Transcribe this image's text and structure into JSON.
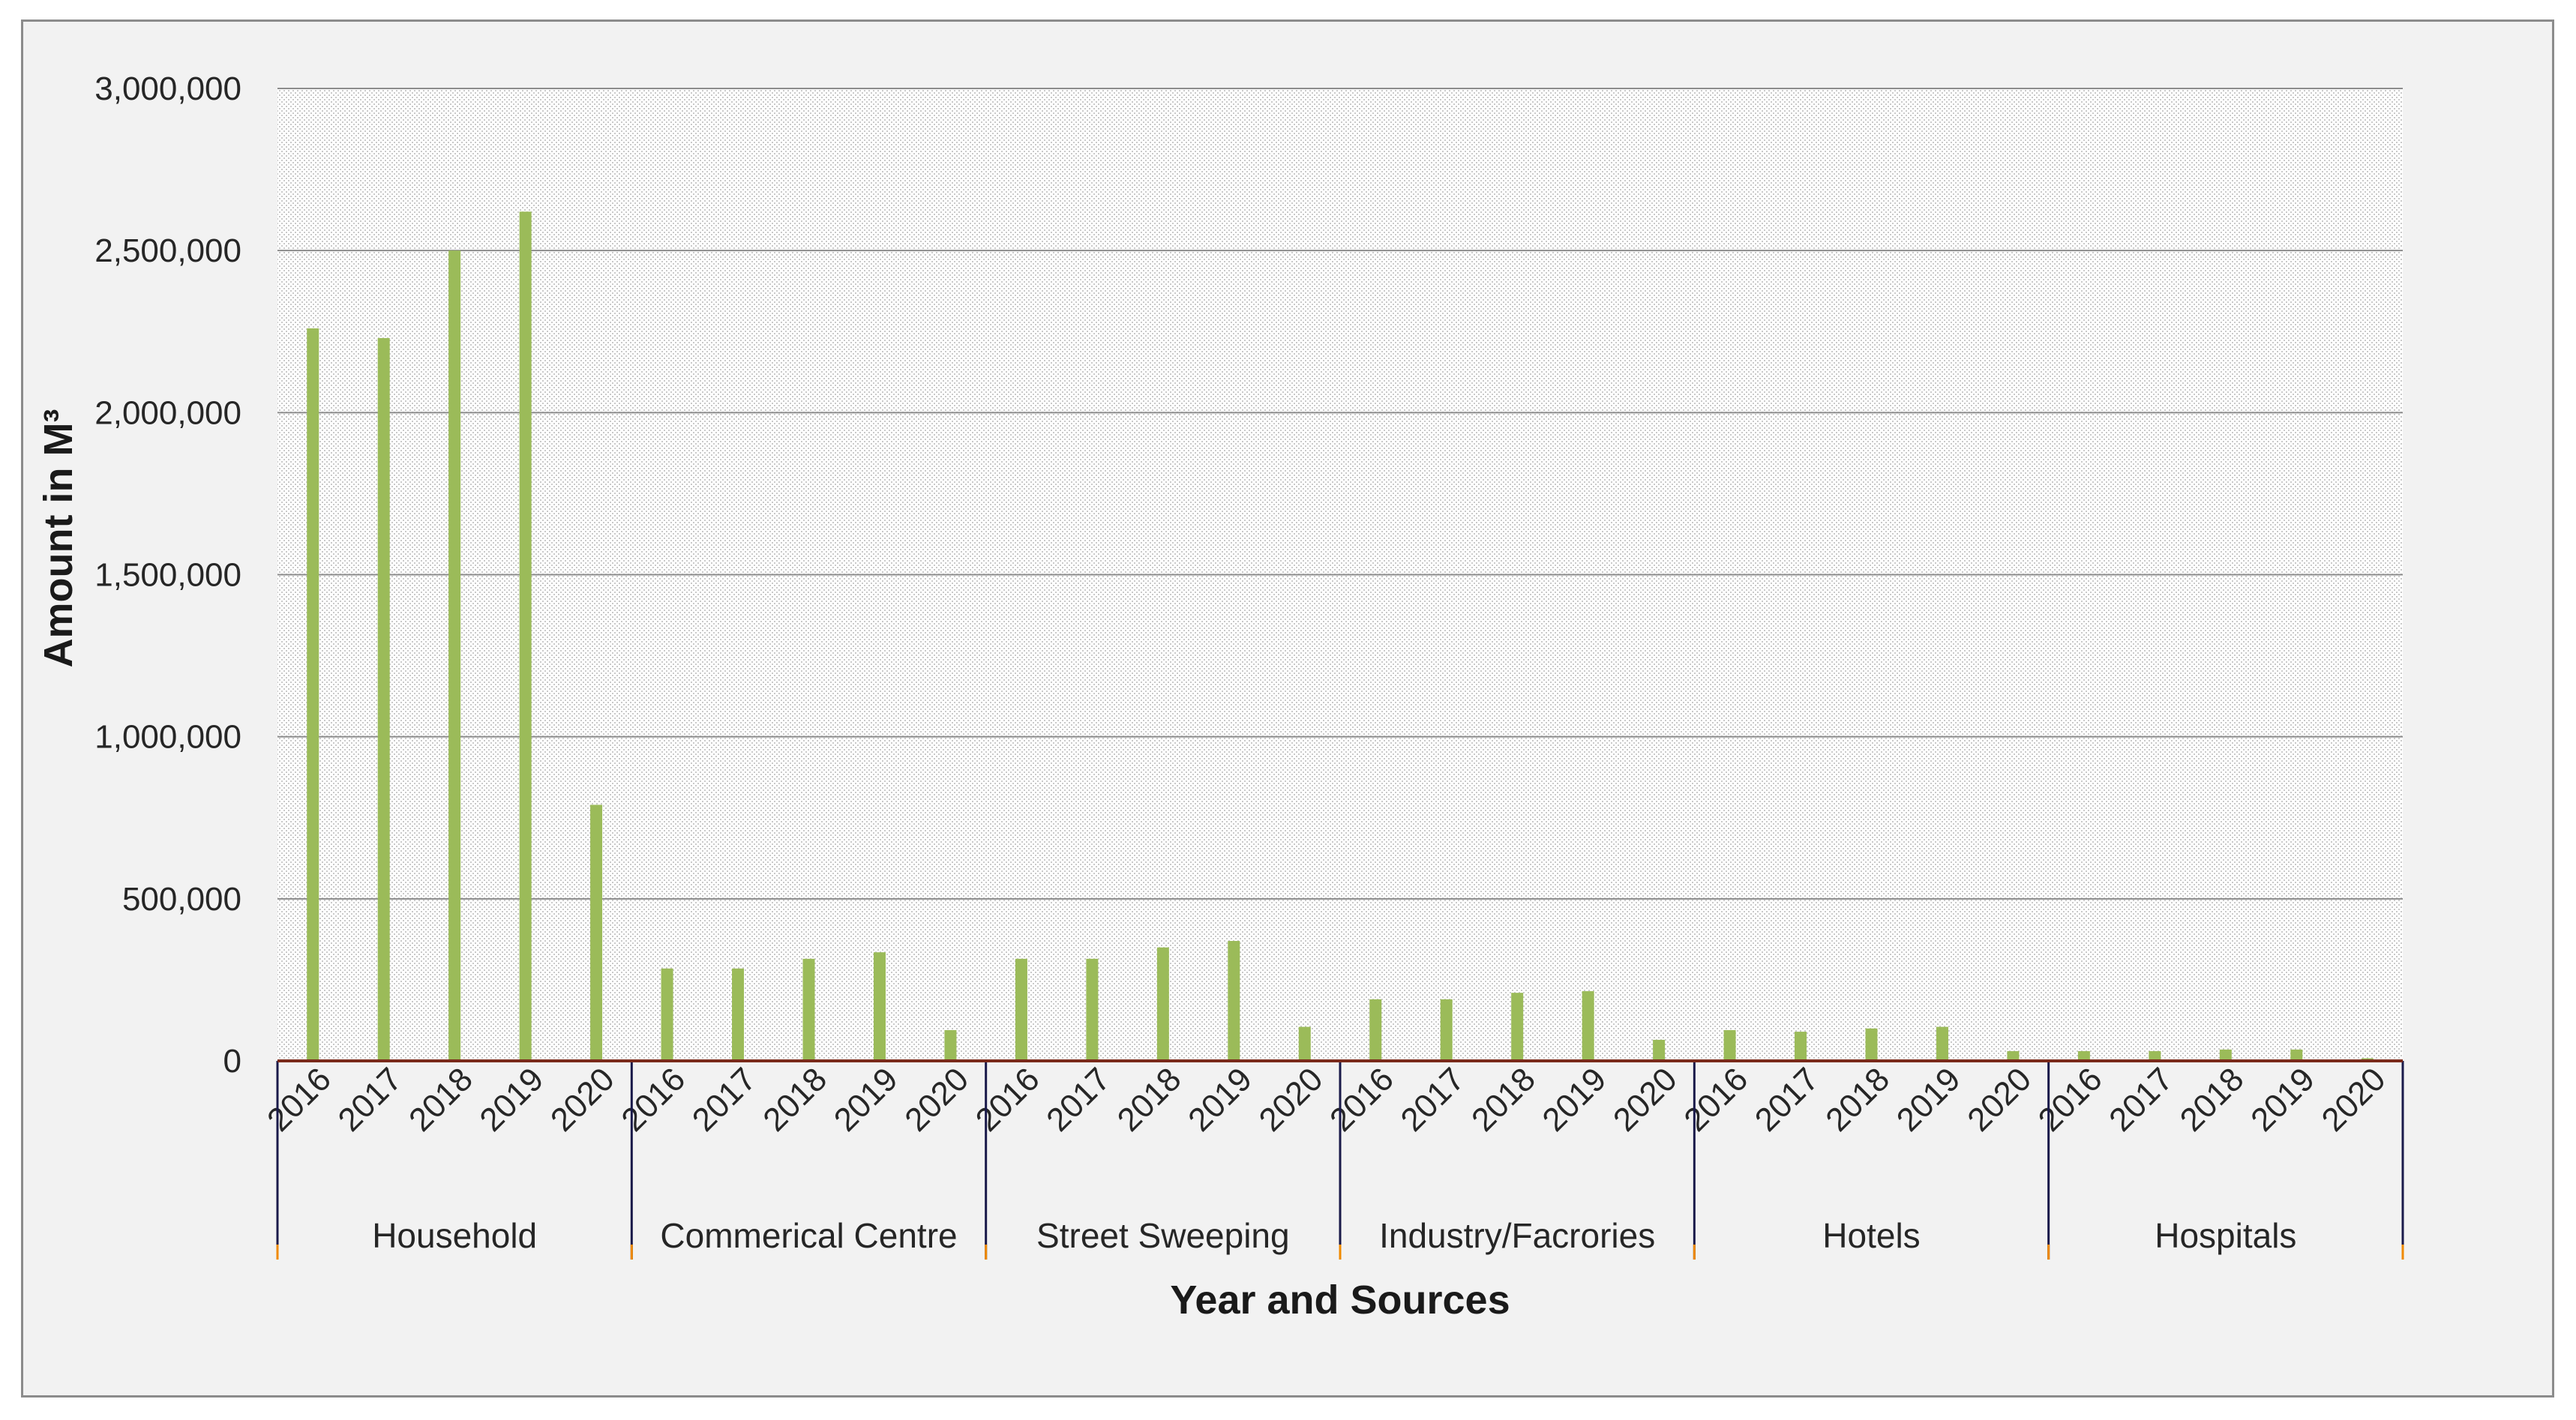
{
  "chart_data": {
    "type": "bar",
    "title": "",
    "xlabel": "Year and Sources",
    "ylabel": "Amount in M³",
    "ylim": [
      0,
      3000000
    ],
    "yticks": [
      0,
      500000,
      1000000,
      1500000,
      2000000,
      2500000,
      3000000
    ],
    "ytick_labels": [
      "0",
      "500,000",
      "1,000,000",
      "1,500,000",
      "2,000,000",
      "2,500,000",
      "3,000,000"
    ],
    "grid": true,
    "bar_color": "#9bbb59",
    "groups": [
      {
        "name": "Household",
        "years": [
          "2016",
          "2017",
          "2018",
          "2019",
          "2020"
        ],
        "values": [
          2260000,
          2230000,
          2500000,
          2620000,
          790000
        ]
      },
      {
        "name": "Commerical Centre",
        "years": [
          "2016",
          "2017",
          "2018",
          "2019",
          "2020"
        ],
        "values": [
          285000,
          285000,
          315000,
          335000,
          95000
        ]
      },
      {
        "name": "Street Sweeping",
        "years": [
          "2016",
          "2017",
          "2018",
          "2019",
          "2020"
        ],
        "values": [
          315000,
          315000,
          350000,
          370000,
          105000
        ]
      },
      {
        "name": "Industry/Facrories",
        "years": [
          "2016",
          "2017",
          "2018",
          "2019",
          "2020"
        ],
        "values": [
          190000,
          190000,
          210000,
          215000,
          65000
        ]
      },
      {
        "name": "Hotels",
        "years": [
          "2016",
          "2017",
          "2018",
          "2019",
          "2020"
        ],
        "values": [
          95000,
          90000,
          100000,
          105000,
          30000
        ]
      },
      {
        "name": "Hospitals",
        "years": [
          "2016",
          "2017",
          "2018",
          "2019",
          "2020"
        ],
        "values": [
          30000,
          30000,
          35000,
          35000,
          8000
        ]
      }
    ]
  }
}
